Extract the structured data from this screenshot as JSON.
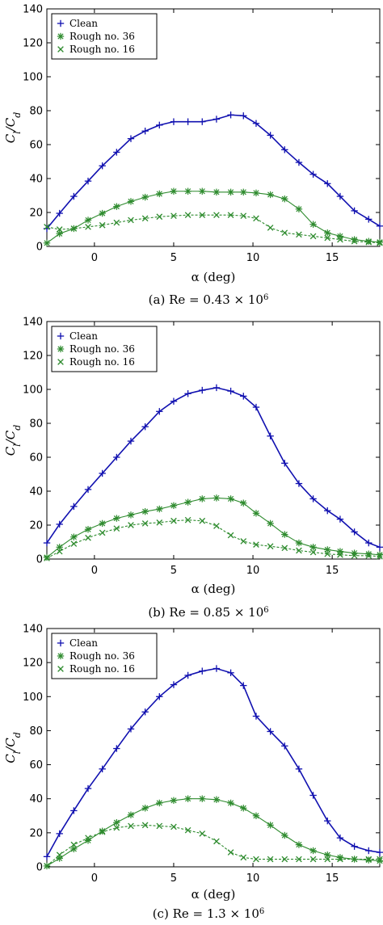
{
  "chart_data": [
    {
      "type": "line",
      "panel_id": "a",
      "caption": "(a) Re = 0.43 × 10",
      "caption_sup": "6",
      "xlabel": "α (deg)",
      "ylabel_main": "C",
      "ylabel_sub1": "l",
      "ylabel_slash": "/C",
      "ylabel_sub2": "d",
      "xlim": [
        -3,
        18
      ],
      "ylim": [
        0,
        140
      ],
      "xticks": [
        0,
        5,
        10,
        15
      ],
      "yticks": [
        0,
        20,
        40,
        60,
        80,
        100,
        120,
        140
      ],
      "legend_position": "top-left",
      "series": [
        {
          "name": "Clean",
          "color": "#1010b0",
          "marker": "plus",
          "x": [
            -3,
            -2.2,
            -1.3,
            -0.4,
            0.5,
            1.4,
            2.3,
            3.2,
            4.1,
            5.0,
            5.9,
            6.8,
            7.7,
            8.6,
            9.4,
            10.2,
            11.1,
            12.0,
            12.9,
            13.8,
            14.7,
            15.5,
            16.4,
            17.3,
            18.0
          ],
          "y": [
            10.5,
            19.5,
            29.5,
            38.5,
            47.5,
            55.5,
            63.5,
            68,
            71.5,
            73.5,
            73.5,
            73.5,
            75,
            77.5,
            77,
            72.5,
            65.5,
            57,
            49.5,
            42.5,
            37,
            29.5,
            21,
            16,
            12
          ]
        },
        {
          "name": "Rough no. 36",
          "color": "#2e8b2e",
          "marker": "star",
          "x": [
            -3,
            -2.2,
            -1.3,
            -0.4,
            0.5,
            1.4,
            2.3,
            3.2,
            4.1,
            5.0,
            5.9,
            6.8,
            7.7,
            8.6,
            9.4,
            10.2,
            11.1,
            12.0,
            12.9,
            13.8,
            14.7,
            15.5,
            16.4,
            17.3,
            18.0
          ],
          "y": [
            2,
            7.5,
            10.5,
            15.5,
            19.5,
            23.5,
            26.5,
            29,
            31,
            32.5,
            32.5,
            32.5,
            32,
            32,
            32,
            31.5,
            30.5,
            28,
            22,
            13,
            8,
            6,
            4,
            3,
            2.5
          ]
        },
        {
          "name": "Rough no. 16",
          "color": "#2e8b2e",
          "marker": "x",
          "x": [
            -3,
            -2.2,
            -1.3,
            -0.4,
            0.5,
            1.4,
            2.3,
            3.2,
            4.1,
            5.0,
            5.9,
            6.8,
            7.7,
            8.6,
            9.4,
            10.2,
            11.1,
            12.0,
            12.9,
            13.8,
            14.7,
            15.5,
            16.4,
            17.3,
            18.0
          ],
          "y": [
            11.5,
            10,
            10.5,
            11.5,
            12.5,
            14,
            15.5,
            16.5,
            17.5,
            18,
            18.5,
            18.5,
            18.5,
            18.5,
            18,
            16.5,
            11,
            8,
            7,
            6,
            5,
            4,
            3,
            2.5,
            2
          ]
        }
      ]
    },
    {
      "type": "line",
      "panel_id": "b",
      "caption": "(b) Re = 0.85 × 10",
      "caption_sup": "6",
      "xlabel": "α (deg)",
      "ylabel_main": "C",
      "ylabel_sub1": "l",
      "ylabel_slash": "/C",
      "ylabel_sub2": "d",
      "xlim": [
        -3,
        18
      ],
      "ylim": [
        0,
        140
      ],
      "xticks": [
        0,
        5,
        10,
        15
      ],
      "yticks": [
        0,
        20,
        40,
        60,
        80,
        100,
        120,
        140
      ],
      "legend_position": "top-left",
      "series": [
        {
          "name": "Clean",
          "color": "#1010b0",
          "marker": "plus",
          "x": [
            -3,
            -2.2,
            -1.3,
            -0.4,
            0.5,
            1.4,
            2.3,
            3.2,
            4.1,
            5.0,
            5.9,
            6.8,
            7.7,
            8.6,
            9.4,
            10.2,
            11.1,
            12.0,
            12.9,
            13.8,
            14.7,
            15.5,
            16.4,
            17.3,
            18.0
          ],
          "y": [
            9.5,
            20.5,
            31,
            41,
            50.5,
            60,
            69.5,
            78,
            87,
            93,
            97.5,
            99.5,
            101,
            99,
            96,
            89.5,
            72.5,
            56.5,
            44.5,
            35.5,
            28.5,
            23.5,
            16,
            9.5,
            7
          ]
        },
        {
          "name": "Rough no. 36",
          "color": "#2e8b2e",
          "marker": "star",
          "x": [
            -3,
            -2.2,
            -1.3,
            -0.4,
            0.5,
            1.4,
            2.3,
            3.2,
            4.1,
            5.0,
            5.9,
            6.8,
            7.7,
            8.6,
            9.4,
            10.2,
            11.1,
            12.0,
            12.9,
            13.8,
            14.7,
            15.5,
            16.4,
            17.3,
            18.0
          ],
          "y": [
            1,
            7,
            13,
            17.5,
            21,
            24,
            26,
            28,
            29.5,
            31.5,
            33.5,
            35.5,
            36,
            35.5,
            33,
            27,
            21,
            14.5,
            9.5,
            7,
            5.5,
            4.5,
            3.5,
            3,
            2.5
          ]
        },
        {
          "name": "Rough no. 16",
          "color": "#2e8b2e",
          "marker": "x",
          "x": [
            -3,
            -2.2,
            -1.3,
            -0.4,
            0.5,
            1.4,
            2.3,
            3.2,
            4.1,
            5.0,
            5.9,
            6.8,
            7.7,
            8.6,
            9.4,
            10.2,
            11.1,
            12.0,
            12.9,
            13.8,
            14.7,
            15.5,
            16.4,
            17.3,
            18.0
          ],
          "y": [
            0.5,
            4.5,
            9,
            12.5,
            15.5,
            18,
            20,
            21,
            21.5,
            22.5,
            23,
            22.5,
            19.5,
            14,
            10.5,
            8.5,
            7.5,
            6.5,
            5,
            4,
            3,
            2.5,
            2,
            2,
            1.5
          ]
        }
      ]
    },
    {
      "type": "line",
      "panel_id": "c",
      "caption": "(c) Re = 1.3 × 10",
      "caption_sup": "6",
      "xlabel": "α (deg)",
      "ylabel_main": "C",
      "ylabel_sub1": "l",
      "ylabel_slash": "/C",
      "ylabel_sub2": "d",
      "xlim": [
        -3,
        18
      ],
      "ylim": [
        0,
        140
      ],
      "xticks": [
        0,
        5,
        10,
        15
      ],
      "yticks": [
        0,
        20,
        40,
        60,
        80,
        100,
        120,
        140
      ],
      "legend_position": "top-left",
      "series": [
        {
          "name": "Clean",
          "color": "#1010b0",
          "marker": "plus",
          "x": [
            -3,
            -2.2,
            -1.3,
            -0.4,
            0.5,
            1.4,
            2.3,
            3.2,
            4.1,
            5.0,
            5.9,
            6.8,
            7.7,
            8.6,
            9.4,
            10.2,
            11.1,
            12.0,
            12.9,
            13.8,
            14.7,
            15.5,
            16.4,
            17.3,
            18.0
          ],
          "y": [
            6,
            19.5,
            33,
            46,
            57.5,
            69.5,
            81,
            91,
            100,
            107,
            112.5,
            115,
            116.5,
            114,
            106.5,
            88.5,
            79.5,
            71,
            57.5,
            42,
            27,
            17,
            12,
            9.5,
            8.5
          ]
        },
        {
          "name": "Rough no. 36",
          "color": "#2e8b2e",
          "marker": "star",
          "x": [
            -3,
            -2.2,
            -1.3,
            -0.4,
            0.5,
            1.4,
            2.3,
            3.2,
            4.1,
            5.0,
            5.9,
            6.8,
            7.7,
            8.6,
            9.4,
            10.2,
            11.1,
            12.0,
            12.9,
            13.8,
            14.7,
            15.5,
            16.4,
            17.3,
            18.0
          ],
          "y": [
            0.5,
            5,
            10.5,
            15.5,
            21,
            26,
            30.5,
            34.5,
            37.5,
            39,
            40,
            40,
            39.5,
            37.5,
            34.5,
            30,
            24.5,
            18.5,
            13,
            9.5,
            7,
            5.5,
            4.5,
            4,
            3.5
          ]
        },
        {
          "name": "Rough no. 16",
          "color": "#2e8b2e",
          "marker": "x",
          "x": [
            -3,
            -2.2,
            -1.3,
            -0.4,
            0.5,
            1.4,
            2.3,
            3.2,
            4.1,
            5.0,
            5.9,
            6.8,
            7.7,
            8.6,
            9.4,
            10.2,
            11.1,
            12.0,
            12.9,
            13.8,
            14.7,
            15.5,
            16.4,
            17.3,
            18.0
          ],
          "y": [
            0.5,
            7,
            13,
            17,
            20.5,
            23,
            24,
            24.5,
            24,
            23.5,
            21.5,
            19.5,
            15,
            8.5,
            5.5,
            4.5,
            4.5,
            4.5,
            4.5,
            4.5,
            4.5,
            4.5,
            4.5,
            4.5,
            4.5
          ]
        }
      ]
    }
  ]
}
